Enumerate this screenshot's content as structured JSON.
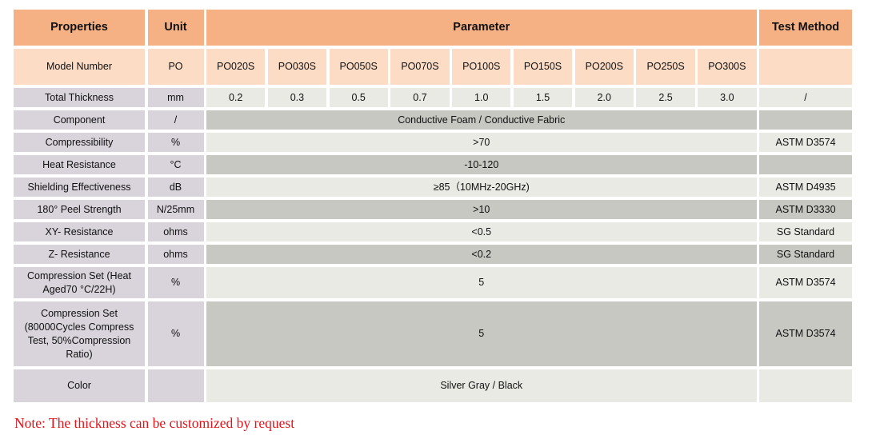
{
  "header": {
    "properties": "Properties",
    "unit": "Unit",
    "parameter": "Parameter",
    "test_method": "Test Method"
  },
  "model": {
    "property": "Model Number",
    "unit": "PO",
    "values": [
      "PO020S",
      "PO030S",
      "PO050S",
      "PO070S",
      "PO100S",
      "PO150S",
      "PO200S",
      "PO250S",
      "PO300S"
    ],
    "test": ""
  },
  "rows": [
    {
      "property": "Total Thickness",
      "unit": "mm",
      "values": [
        "0.2",
        "0.3",
        "0.5",
        "0.7",
        "1.0",
        "1.5",
        "2.0",
        "2.5",
        "3.0"
      ],
      "test": "/",
      "shade": "light"
    },
    {
      "property": "Component",
      "unit": "/",
      "value": "Conductive Foam / Conductive Fabric",
      "test": "",
      "shade": "dark"
    },
    {
      "property": "Compressibility",
      "unit": "%",
      "value": ">70",
      "test": "ASTM D3574",
      "shade": "light"
    },
    {
      "property": "Heat Resistance",
      "unit": "°C",
      "value": "-10-120",
      "test": "",
      "shade": "dark"
    },
    {
      "property": "Shielding Effectiveness",
      "unit": "dB",
      "value": "≥85（10MHz-20GHz)",
      "test": "ASTM D4935",
      "shade": "light"
    },
    {
      "property": "180° Peel Strength",
      "unit": "N/25mm",
      "value": ">10",
      "test": "ASTM D3330",
      "shade": "dark"
    },
    {
      "property": "XY- Resistance",
      "unit": "ohms",
      "value": "<0.5",
      "test": "SG Standard",
      "shade": "light"
    },
    {
      "property": "Z- Resistance",
      "unit": "ohms",
      "value": "<0.2",
      "test": "SG Standard",
      "shade": "dark"
    },
    {
      "property": "Compression Set (Heat Aged70 °C/22H)",
      "unit": "%",
      "value": "5",
      "test": "ASTM D3574",
      "shade": "light"
    },
    {
      "property": "Compression Set (80000Cycles Compress Test, 50%Compression Ratio)",
      "unit": "%",
      "value": "5",
      "test": "ASTM D3574",
      "shade": "dark"
    },
    {
      "property": "Color",
      "unit": "",
      "value": "Silver Gray / Black",
      "test": "",
      "shade": "light"
    }
  ],
  "note": "Note: The thickness can be customized by request",
  "colors": {
    "header": "#f5b083",
    "model_row": "#fcdcc5",
    "property_cell": "#d9d3dc",
    "light_row": "#eaeae5",
    "dark_row": "#c8c8c3",
    "note": "#e0141b"
  }
}
